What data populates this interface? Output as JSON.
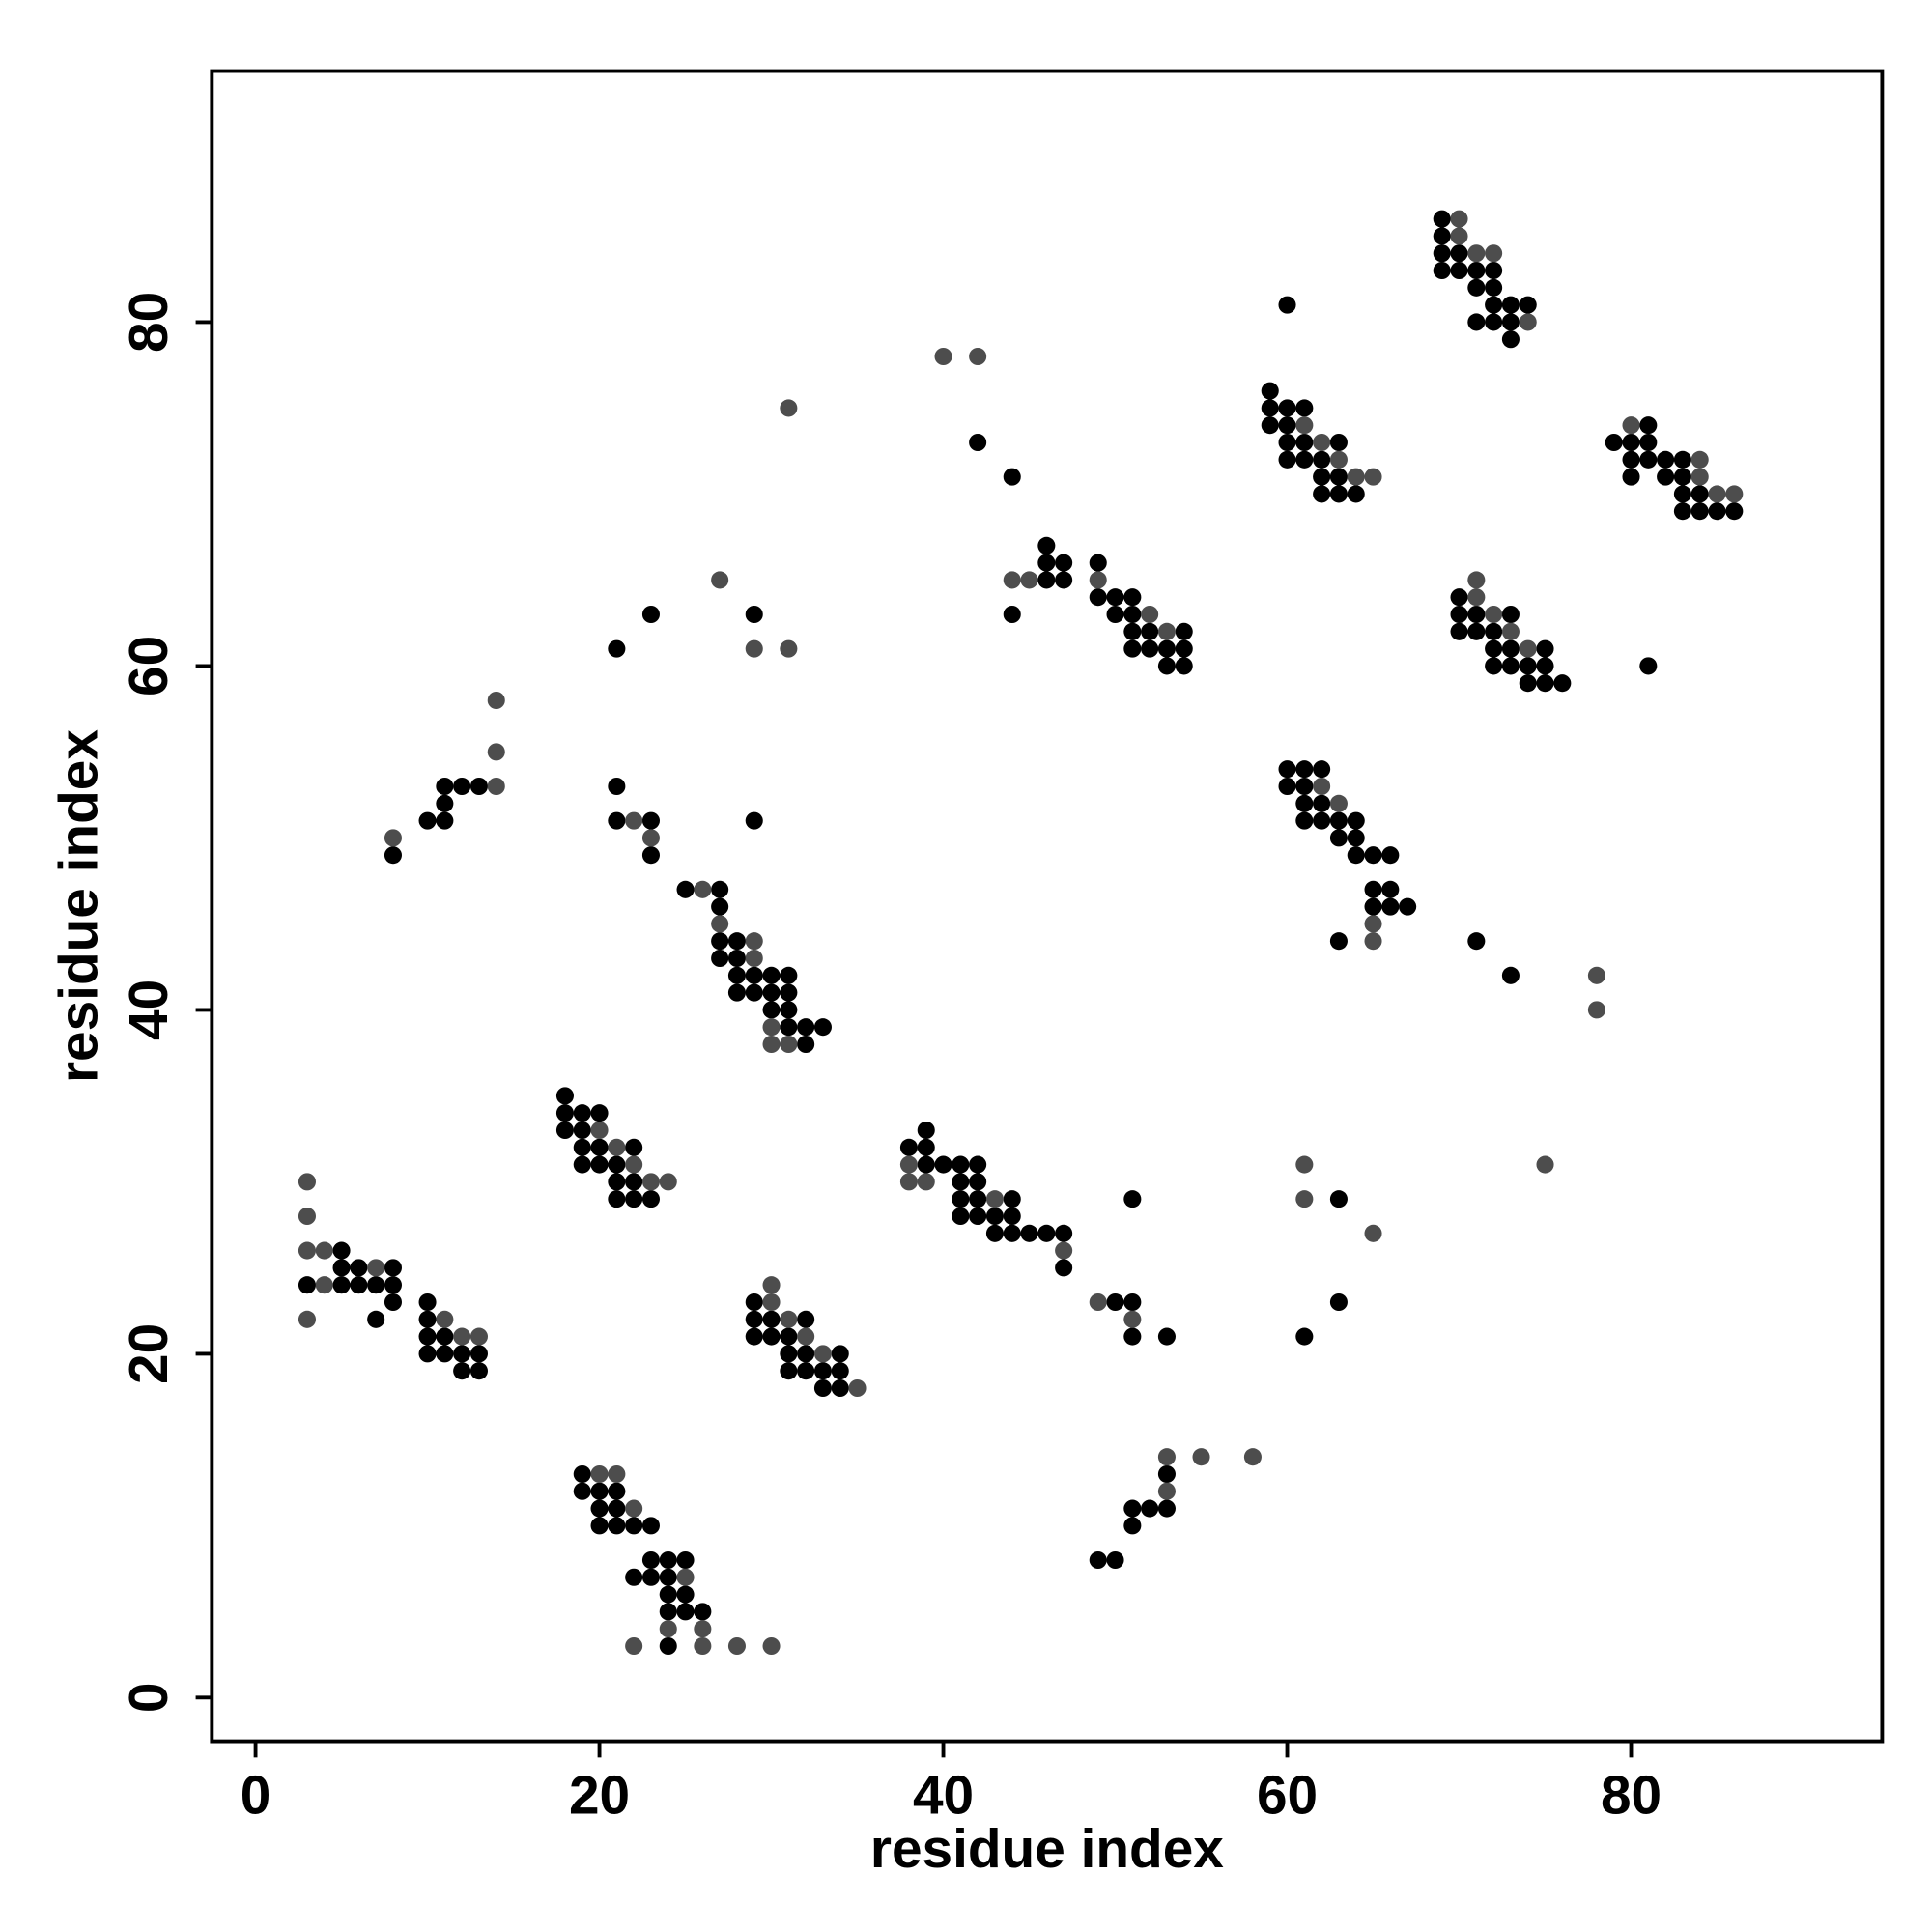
{
  "chart_data": {
    "type": "scatter",
    "xlabel": "residue index",
    "ylabel": "residue index",
    "xlim": [
      -2.54,
      94.6
    ],
    "ylim": [
      -2.54,
      94.6
    ],
    "xticks": [
      0,
      20,
      40,
      60,
      80
    ],
    "yticks": [
      0,
      20,
      40,
      60,
      80
    ],
    "grid": false,
    "series": [
      {
        "color": "#000000",
        "x": [
          5,
          3,
          5,
          5,
          6,
          6,
          7,
          7,
          8,
          8,
          8,
          10,
          10,
          10,
          10,
          11,
          11,
          12,
          12,
          13,
          13,
          8,
          10,
          11,
          11,
          11,
          12,
          13,
          18,
          18,
          18,
          19,
          19,
          19,
          19,
          20,
          20,
          20,
          21,
          21,
          21,
          22,
          22,
          22,
          23,
          29,
          29,
          30,
          32,
          29,
          30,
          31,
          31,
          32,
          34,
          31,
          32,
          33,
          34,
          33,
          34,
          19,
          19,
          20,
          21,
          20,
          21,
          20,
          21,
          22,
          23,
          23,
          24,
          25,
          22,
          23,
          24,
          24,
          25,
          24,
          25,
          26,
          24,
          21,
          21,
          23,
          23,
          29,
          21,
          23,
          29,
          25,
          27,
          27,
          27,
          27,
          28,
          28,
          28,
          28,
          29,
          29,
          30,
          30,
          30,
          31,
          31,
          31,
          31,
          32,
          32,
          33,
          38,
          39,
          39,
          39,
          40,
          41,
          41,
          42,
          42,
          41,
          41,
          42,
          42,
          43,
          43,
          44,
          44,
          44,
          45,
          46,
          47,
          47,
          50,
          51,
          51,
          53,
          51,
          49,
          50,
          51,
          51,
          52,
          53,
          53,
          63,
          63,
          61,
          42,
          44,
          46,
          46,
          46,
          47,
          47,
          44,
          49,
          49,
          50,
          50,
          51,
          51,
          51,
          51,
          52,
          52,
          53,
          53,
          54,
          54,
          54,
          59,
          59,
          59,
          60,
          60,
          60,
          60,
          61,
          61,
          61,
          62,
          62,
          62,
          63,
          63,
          63,
          64,
          60,
          69,
          69,
          69,
          70,
          69,
          70,
          71,
          72,
          71,
          72,
          72,
          73,
          74,
          71,
          72,
          73,
          73,
          79,
          80,
          80,
          80,
          81,
          81,
          81,
          82,
          82,
          83,
          83,
          83,
          83,
          84,
          84,
          85,
          86,
          81,
          70,
          70,
          71,
          73,
          70,
          71,
          72,
          72,
          73,
          75,
          72,
          73,
          74,
          75,
          74,
          75,
          76,
          60,
          61,
          62,
          60,
          61,
          61,
          62,
          61,
          62,
          63,
          64,
          63,
          64,
          64,
          65,
          66,
          65,
          66,
          65,
          66,
          67,
          63,
          71,
          73
        ],
        "values": [
          26,
          24,
          25,
          24,
          25,
          24,
          24,
          22,
          25,
          24,
          23,
          23,
          22,
          21,
          20,
          21,
          20,
          20,
          19,
          20,
          19,
          49,
          51,
          51,
          52,
          53,
          53,
          53,
          35,
          34,
          33,
          34,
          33,
          32,
          31,
          34,
          32,
          31,
          31,
          30,
          29,
          32,
          30,
          29,
          29,
          23,
          22,
          22,
          22,
          21,
          21,
          21,
          20,
          20,
          20,
          19,
          19,
          19,
          19,
          18,
          18,
          13,
          12,
          12,
          12,
          11,
          11,
          10,
          10,
          10,
          10,
          8,
          8,
          8,
          7,
          7,
          7,
          6,
          6,
          5,
          5,
          5,
          3,
          53,
          51,
          51,
          49,
          51,
          61,
          63,
          63,
          47,
          47,
          46,
          44,
          43,
          44,
          43,
          42,
          41,
          42,
          41,
          42,
          41,
          40,
          42,
          41,
          40,
          39,
          39,
          38,
          39,
          32,
          33,
          32,
          31,
          31,
          31,
          30,
          31,
          30,
          29,
          28,
          29,
          28,
          28,
          27,
          29,
          28,
          27,
          27,
          27,
          27,
          25,
          23,
          23,
          21,
          21,
          29,
          8,
          8,
          10,
          11,
          11,
          11,
          13,
          29,
          23,
          21,
          73,
          71,
          67,
          66,
          65,
          66,
          65,
          63,
          66,
          64,
          64,
          63,
          64,
          63,
          62,
          61,
          62,
          61,
          61,
          60,
          62,
          61,
          60,
          76,
          75,
          74,
          75,
          74,
          73,
          72,
          75,
          73,
          72,
          72,
          71,
          70,
          73,
          71,
          70,
          70,
          81,
          86,
          85,
          84,
          84,
          83,
          83,
          83,
          83,
          82,
          82,
          81,
          81,
          81,
          80,
          80,
          80,
          79,
          73,
          73,
          72,
          71,
          74,
          73,
          72,
          72,
          71,
          72,
          71,
          70,
          69,
          70,
          69,
          69,
          69,
          60,
          64,
          63,
          63,
          63,
          62,
          62,
          62,
          61,
          61,
          61,
          60,
          60,
          60,
          60,
          59,
          59,
          59,
          54,
          54,
          54,
          53,
          53,
          52,
          52,
          51,
          51,
          51,
          51,
          50,
          50,
          49,
          49,
          49,
          47,
          47,
          46,
          46,
          46,
          44,
          44,
          42
        ]
      },
      {
        "color": "#4d4d4d",
        "x": [
          3,
          3,
          3,
          4,
          4,
          7,
          3,
          11,
          12,
          13,
          8,
          14,
          14,
          14,
          20,
          21,
          22,
          23,
          24,
          30,
          30,
          31,
          32,
          33,
          35,
          20,
          21,
          22,
          25,
          24,
          26,
          22,
          26,
          28,
          30,
          22,
          23,
          27,
          29,
          31,
          31,
          26,
          27,
          29,
          29,
          30,
          30,
          31,
          38,
          38,
          39,
          43,
          47,
          49,
          51,
          53,
          53,
          55,
          58,
          61,
          61,
          65,
          75,
          40,
          42,
          44,
          45,
          49,
          52,
          53,
          61,
          62,
          63,
          64,
          65,
          70,
          70,
          71,
          72,
          74,
          80,
          84,
          84,
          85,
          86,
          71,
          71,
          72,
          73,
          74,
          62,
          63,
          65,
          65,
          78,
          78
        ],
        "values": [
          30,
          28,
          26,
          26,
          24,
          25,
          22,
          22,
          21,
          21,
          50,
          53,
          55,
          58,
          33,
          32,
          31,
          30,
          30,
          24,
          23,
          22,
          21,
          20,
          18,
          13,
          13,
          11,
          7,
          4,
          4,
          3,
          3,
          3,
          3,
          51,
          50,
          65,
          61,
          61,
          75,
          47,
          45,
          44,
          43,
          39,
          38,
          38,
          31,
          30,
          30,
          29,
          26,
          23,
          22,
          12,
          14,
          14,
          14,
          31,
          29,
          27,
          31,
          78,
          78,
          65,
          65,
          65,
          63,
          62,
          74,
          73,
          72,
          71,
          71,
          86,
          85,
          84,
          84,
          80,
          74,
          72,
          71,
          70,
          70,
          65,
          64,
          63,
          62,
          61,
          53,
          52,
          45,
          44,
          42,
          40
        ]
      }
    ]
  }
}
